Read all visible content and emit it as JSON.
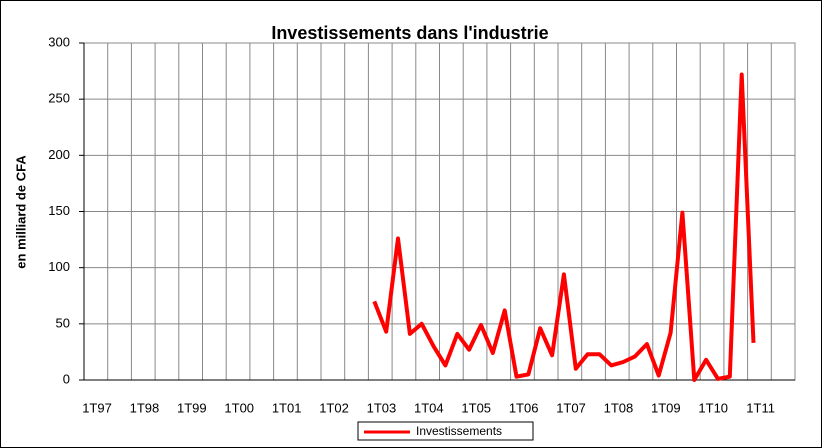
{
  "chart_data": {
    "type": "line",
    "title": "Investissements dans l'industrie",
    "ylabel": "en milliard de CFA",
    "categories": [
      "1T97",
      null,
      null,
      null,
      "1T98",
      null,
      null,
      null,
      "1T99",
      null,
      null,
      null,
      "1T00",
      null,
      null,
      null,
      "1T01",
      null,
      null,
      null,
      "1T02",
      null,
      null,
      null,
      "1T03",
      null,
      null,
      null,
      "1T04",
      null,
      null,
      null,
      "1T05",
      null,
      null,
      null,
      "1T06",
      null,
      null,
      null,
      "1T07",
      null,
      null,
      null,
      "1T08",
      null,
      null,
      null,
      "1T09",
      null,
      null,
      null,
      "1T10",
      null,
      null,
      null,
      "1T11",
      null,
      null,
      null
    ],
    "series": [
      {
        "name": "Investissements",
        "color": "#ff0000",
        "values": [
          null,
          null,
          null,
          null,
          null,
          null,
          null,
          null,
          null,
          null,
          null,
          null,
          null,
          null,
          null,
          null,
          null,
          null,
          null,
          null,
          null,
          null,
          null,
          null,
          70,
          43,
          126,
          41,
          50,
          30,
          13,
          41,
          27,
          49,
          24,
          62,
          3,
          5,
          46,
          22,
          94,
          10,
          23,
          23,
          13,
          16,
          21,
          32,
          4,
          42,
          149,
          0,
          18,
          1,
          3,
          272,
          33,
          null,
          null,
          null
        ]
      }
    ],
    "ylim": [
      0,
      300
    ],
    "yticks": [
      0,
      50,
      100,
      150,
      200,
      250,
      300
    ],
    "grid": true,
    "legend": "bottom"
  }
}
